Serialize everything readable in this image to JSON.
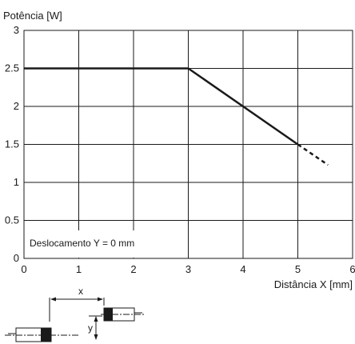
{
  "chart_data": {
    "type": "line",
    "ylabel": "Potência [W]",
    "xlabel": "Distância X [mm]",
    "xlim": [
      0,
      6
    ],
    "ylim": [
      0,
      3
    ],
    "xticks": [
      0,
      1,
      2,
      3,
      4,
      5,
      6
    ],
    "yticks": [
      0,
      0.5,
      1,
      1.5,
      2,
      2.5,
      3
    ],
    "ytick_labels": [
      "0",
      "0.5",
      "1",
      "1.5",
      "2",
      "2.5",
      "3"
    ],
    "grid": true,
    "series": [
      {
        "style": "solid",
        "x": [
          0,
          3,
          5
        ],
        "y": [
          2.5,
          2.5,
          1.5
        ]
      },
      {
        "style": "dashed",
        "x": [
          5,
          5.55
        ],
        "y": [
          1.5,
          1.23
        ]
      }
    ],
    "annotation": "Deslocamento Y = 0 mm",
    "line_color": "#1a1a1a"
  },
  "diagram": {
    "x_label": "x",
    "y_label": "y"
  }
}
